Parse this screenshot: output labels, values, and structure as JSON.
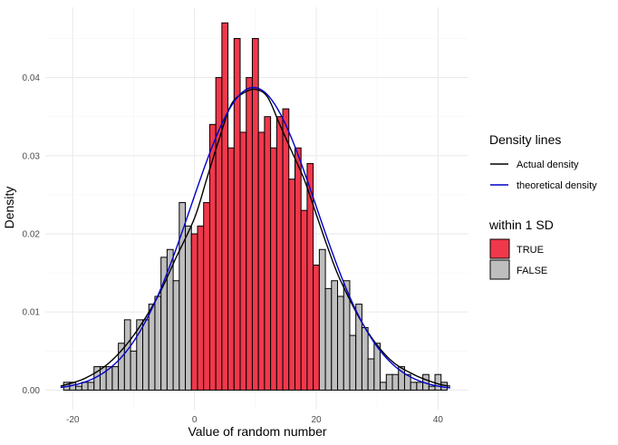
{
  "chart_data": {
    "type": "bar",
    "xlabel": "Value of random number",
    "ylabel": "Density",
    "xlim": [
      -24.5,
      45
    ],
    "ylim": [
      -0.0025,
      0.049
    ],
    "x_ticks": [
      -20,
      0,
      20,
      40
    ],
    "x_tick_labels": [
      "-20",
      "0",
      "20",
      "40"
    ],
    "y_ticks": [
      0,
      0.01,
      0.02,
      0.03,
      0.04
    ],
    "y_tick_labels": [
      "0.00",
      "0.01",
      "0.02",
      "0.03",
      "0.04"
    ],
    "grid": true,
    "legend_position": "right",
    "bin_width": 1,
    "bin_start": -21.5,
    "bin_values": [
      0.001,
      0.001,
      0.0005,
      0.001,
      0.001,
      0.003,
      0.003,
      0.003,
      0.003,
      0.006,
      0.009,
      0.005,
      0.009,
      0.009,
      0.011,
      0.012,
      0.017,
      0.018,
      0.014,
      0.024,
      0.021,
      0.02,
      0.021,
      0.024,
      0.034,
      0.04,
      0.047,
      0.031,
      0.045,
      0.033,
      0.04,
      0.045,
      0.033,
      0.035,
      0.031,
      0.035,
      0.036,
      0.027,
      0.031,
      0.023,
      0.029,
      0.016,
      0.018,
      0.013,
      0.014,
      0.012,
      0.014,
      0.007,
      0.011,
      0.008,
      0.004,
      0.006,
      0.001,
      0.002,
      0.002,
      0.003,
      0.002,
      0.001,
      0.001,
      0.002,
      0.0005,
      0.002,
      0.001
    ],
    "within_range": [
      0,
      20
    ],
    "density_lines": {
      "title": "Density lines",
      "series": [
        {
          "name": "Actual density",
          "color": "#000000",
          "x": [
            -22,
            -18,
            -14,
            -10,
            -6,
            -3,
            0,
            2,
            4,
            6,
            8,
            10,
            12,
            14,
            16,
            18,
            20,
            22,
            24,
            28,
            32,
            36,
            40,
            42
          ],
          "y": [
            0.0005,
            0.0015,
            0.0035,
            0.007,
            0.012,
            0.017,
            0.022,
            0.027,
            0.032,
            0.0365,
            0.038,
            0.0385,
            0.0375,
            0.034,
            0.0305,
            0.027,
            0.0225,
            0.018,
            0.014,
            0.008,
            0.004,
            0.002,
            0.0008,
            0.0005
          ]
        },
        {
          "name": "theoretical density",
          "color": "#0000cc",
          "mean": 9.7,
          "sd": 10.3
        }
      ]
    },
    "fill_legend": {
      "title": "within 1 SD",
      "items": [
        {
          "label": "TRUE",
          "color": "#f0384b"
        },
        {
          "label": "FALSE",
          "color": "#bebebe"
        }
      ]
    }
  }
}
